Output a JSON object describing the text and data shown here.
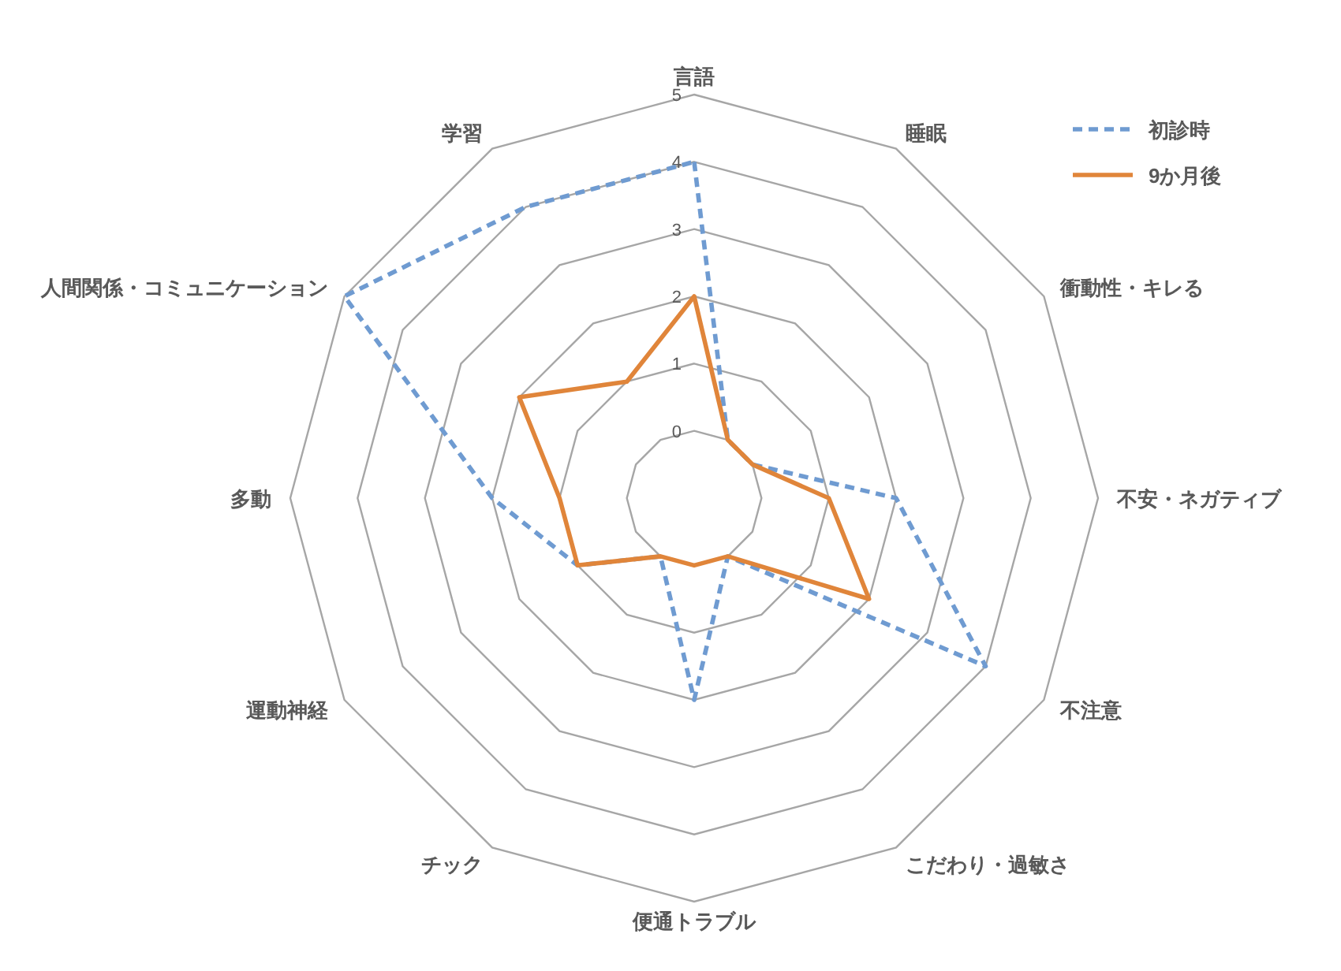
{
  "chart_data": {
    "type": "radar",
    "categories": [
      "言語",
      "睡眠",
      "衝動性・キレる",
      "不安・ネガティブ",
      "不注意",
      "こだわり・過敏さ",
      "便通トラブル",
      "チック",
      "運動神経",
      "多動",
      "人間関係・コミュニケーション",
      "学習"
    ],
    "series": [
      {
        "name": "初診時",
        "color": "#6f9bd1",
        "line_style": "dashed",
        "values": [
          4,
          0,
          0,
          2,
          4,
          0,
          2,
          0,
          1,
          2,
          5,
          4
        ]
      },
      {
        "name": "9か月後",
        "color": "#e0853a",
        "line_style": "solid",
        "values": [
          2,
          0,
          0,
          1,
          2,
          0,
          0,
          0,
          1,
          1,
          2,
          1
        ]
      }
    ],
    "ylim": [
      -1,
      5
    ],
    "yticks": [
      0,
      1,
      2,
      3,
      4,
      5
    ],
    "grid": true,
    "legend": "top right",
    "marker": "none"
  }
}
